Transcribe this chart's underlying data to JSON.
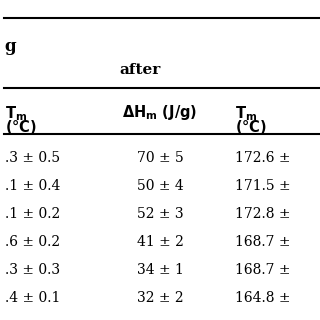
{
  "title_partial": "g",
  "subheader": "after",
  "col1_values": [
    ".3 ± 0.5",
    ".1 ± 0.4",
    ".1 ± 0.2",
    ".6 ± 0.2",
    ".3 ± 0.3",
    ".4 ± 0.1"
  ],
  "col2_values": [
    "70 ± 5",
    "50 ± 4",
    "52 ± 3",
    "41 ± 2",
    "34 ± 1",
    "32 ± 2"
  ],
  "col3_values": [
    "172.6 ±",
    "171.5 ±",
    "172.8 ±",
    "168.7 ±",
    "168.7 ±",
    "164.8 ±"
  ],
  "bg_color": "#ffffff",
  "line_color": "#000000",
  "font_size": 10.0,
  "header_font_size": 10.5,
  "title_font_size": 12.0
}
